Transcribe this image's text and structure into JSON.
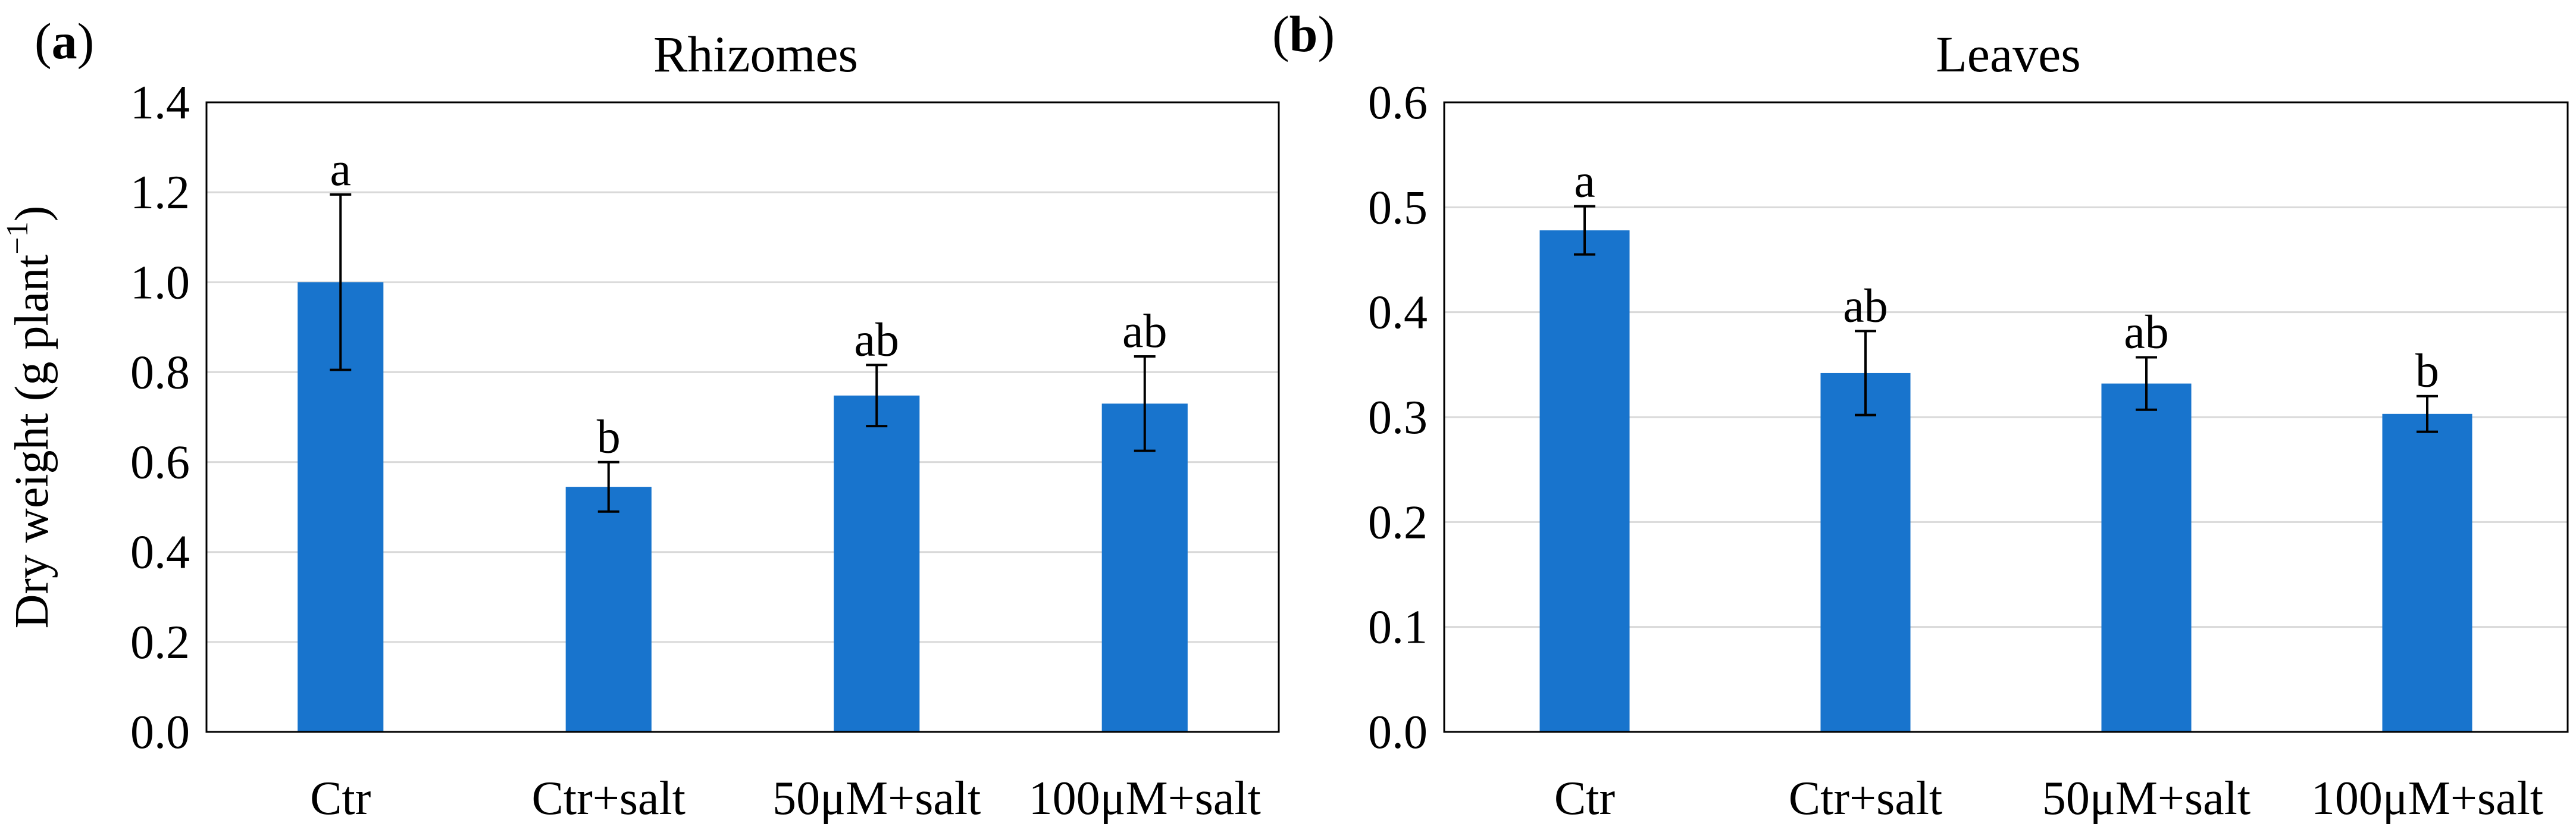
{
  "chart_data": [
    {
      "type": "bar",
      "panel_label": "a",
      "title": "Rhizomes",
      "ylabel": "Dry weight (g plant",
      "ylabel_superscript": "−1",
      "ylabel_close": ")",
      "ylim": [
        0,
        1.4
      ],
      "yticks": [
        0.0,
        0.2,
        0.4,
        0.6,
        0.8,
        1.0,
        1.2,
        1.4
      ],
      "tick_decimals": 1,
      "grid": true,
      "color": "#1874cd",
      "categories": [
        "Ctr",
        "Ctr+salt",
        "50μM+salt",
        "100μM+salt"
      ],
      "values": [
        1.0,
        0.545,
        0.748,
        0.73
      ],
      "errors": [
        0.195,
        0.055,
        0.068,
        0.105
      ],
      "significance": [
        "a",
        "b",
        "ab",
        "ab"
      ]
    },
    {
      "type": "bar",
      "panel_label": "b",
      "title": "Leaves",
      "ylabel": "",
      "ylim": [
        0,
        0.6
      ],
      "yticks": [
        0.0,
        0.1,
        0.2,
        0.3,
        0.4,
        0.5,
        0.6
      ],
      "tick_decimals": 1,
      "grid": true,
      "color": "#1874cd",
      "categories": [
        "Ctr",
        "Ctr+salt",
        "50μM+salt",
        "100μM+salt"
      ],
      "values": [
        0.478,
        0.342,
        0.332,
        0.303
      ],
      "errors": [
        0.023,
        0.04,
        0.025,
        0.017
      ],
      "significance": [
        "a",
        "ab",
        "ab",
        "b"
      ]
    }
  ]
}
